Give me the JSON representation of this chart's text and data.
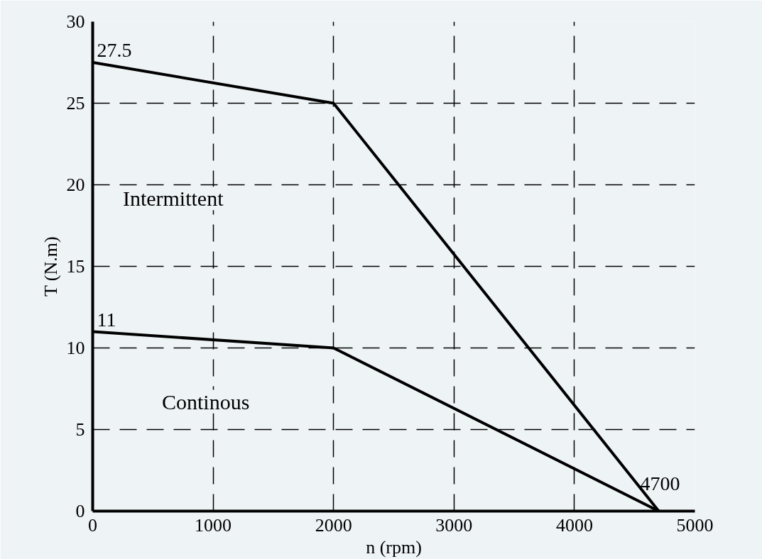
{
  "chart_data": {
    "type": "line",
    "xlabel": "n (rpm)",
    "ylabel": "T (N.m)",
    "series": [
      {
        "color": "#000000",
        "x": [
          0,
          2000,
          4700
        ],
        "values": [
          27.5,
          25,
          0
        ]
      },
      {
        "color": "#000000",
        "x": [
          0,
          2000,
          4700
        ],
        "values": [
          11,
          10,
          0
        ]
      }
    ],
    "xlim": [
      0,
      5000
    ],
    "ylim": [
      0,
      30
    ],
    "xticks": [
      0,
      1000,
      2000,
      3000,
      4000,
      5000
    ],
    "yticks": [
      0,
      5,
      10,
      15,
      20,
      25,
      30
    ],
    "grid": true,
    "marker": "none",
    "line_style": "solid",
    "annotations": [
      "27.5",
      "11",
      "4700",
      "Intermittent",
      "Continous"
    ]
  }
}
